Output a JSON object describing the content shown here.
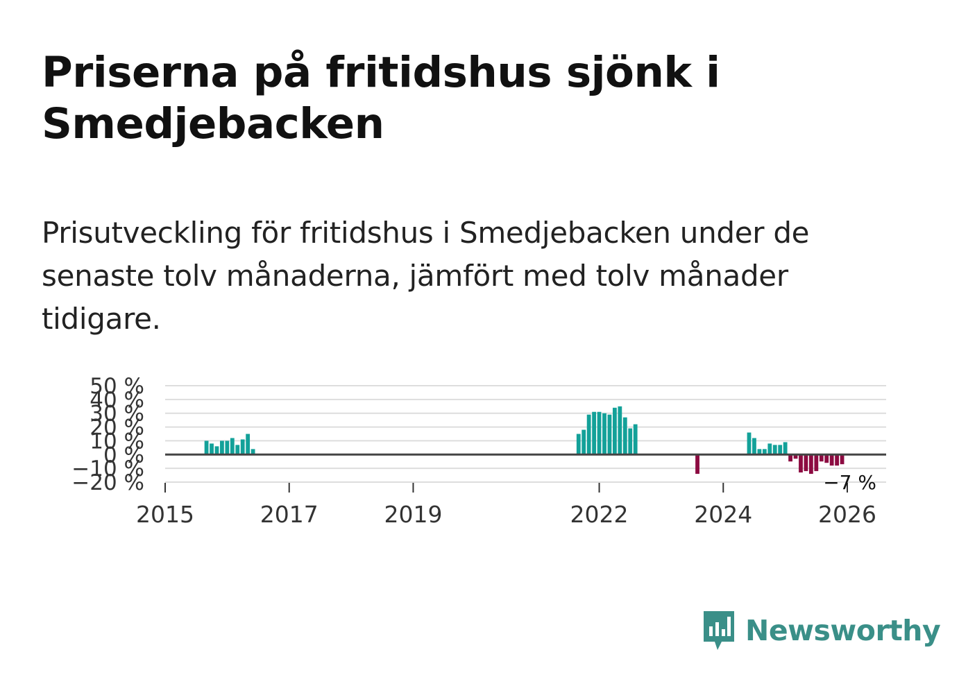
{
  "title": "Priserna på fritidshus sjönk i Smedjebacken",
  "subtitle": "Prisutveckling för fritidshus i Smedjebacken under de senaste tolv månaderna, jämfört med tolv månader tidigare.",
  "brand": {
    "name": "Newsworthy",
    "icon": "newsworthy-logo-icon"
  },
  "colors": {
    "positive": "#13a199",
    "negative": "#8c0b41",
    "zero_line": "#444444",
    "grid": "#dddddd",
    "brand": "#3a8f88"
  },
  "chart_data": {
    "type": "bar",
    "title": "",
    "xlabel": "",
    "ylabel": "",
    "ylim": [
      -20,
      50
    ],
    "yticks": [
      {
        "value": 50,
        "label": "50 %"
      },
      {
        "value": 40,
        "label": "40 %"
      },
      {
        "value": 30,
        "label": "30 %"
      },
      {
        "value": 20,
        "label": "20 %"
      },
      {
        "value": 10,
        "label": "10 %"
      },
      {
        "value": 0,
        "label": "0 %"
      },
      {
        "value": -10,
        "label": "−10 %"
      },
      {
        "value": -20,
        "label": "−20 %"
      }
    ],
    "xticks": [
      {
        "date": "2015-01",
        "label": "2015"
      },
      {
        "date": "2017-01",
        "label": "2017"
      },
      {
        "date": "2019-01",
        "label": "2019"
      },
      {
        "date": "2022-01",
        "label": "2022"
      },
      {
        "date": "2024-01",
        "label": "2024"
      },
      {
        "date": "2026-01",
        "label": "2026"
      }
    ],
    "xrange": [
      "2015-01",
      "2026-08"
    ],
    "grid": true,
    "last_value_label": "−7 %",
    "bars": [
      {
        "date": "2015-09",
        "value": 10
      },
      {
        "date": "2015-10",
        "value": 8
      },
      {
        "date": "2015-11",
        "value": 6
      },
      {
        "date": "2015-12",
        "value": 10
      },
      {
        "date": "2016-01",
        "value": 10
      },
      {
        "date": "2016-02",
        "value": 12
      },
      {
        "date": "2016-03",
        "value": 7
      },
      {
        "date": "2016-04",
        "value": 11
      },
      {
        "date": "2016-05",
        "value": 15
      },
      {
        "date": "2016-06",
        "value": 4
      },
      {
        "date": "2021-09",
        "value": 15
      },
      {
        "date": "2021-10",
        "value": 18
      },
      {
        "date": "2021-11",
        "value": 29
      },
      {
        "date": "2021-12",
        "value": 31
      },
      {
        "date": "2022-01",
        "value": 31
      },
      {
        "date": "2022-02",
        "value": 30
      },
      {
        "date": "2022-03",
        "value": 29
      },
      {
        "date": "2022-04",
        "value": 34
      },
      {
        "date": "2022-05",
        "value": 35
      },
      {
        "date": "2022-06",
        "value": 27
      },
      {
        "date": "2022-07",
        "value": 19
      },
      {
        "date": "2022-08",
        "value": 22
      },
      {
        "date": "2023-08",
        "value": -14
      },
      {
        "date": "2024-06",
        "value": 16
      },
      {
        "date": "2024-07",
        "value": 12
      },
      {
        "date": "2024-08",
        "value": 4
      },
      {
        "date": "2024-09",
        "value": 4
      },
      {
        "date": "2024-10",
        "value": 8
      },
      {
        "date": "2024-11",
        "value": 7
      },
      {
        "date": "2024-12",
        "value": 7
      },
      {
        "date": "2025-01",
        "value": 9
      },
      {
        "date": "2025-02",
        "value": -5
      },
      {
        "date": "2025-03",
        "value": -3
      },
      {
        "date": "2025-04",
        "value": -13
      },
      {
        "date": "2025-05",
        "value": -12
      },
      {
        "date": "2025-06",
        "value": -14
      },
      {
        "date": "2025-07",
        "value": -12
      },
      {
        "date": "2025-08",
        "value": -5
      },
      {
        "date": "2025-09",
        "value": -6
      },
      {
        "date": "2025-10",
        "value": -8
      },
      {
        "date": "2025-11",
        "value": -8
      },
      {
        "date": "2025-12",
        "value": -7
      }
    ]
  }
}
